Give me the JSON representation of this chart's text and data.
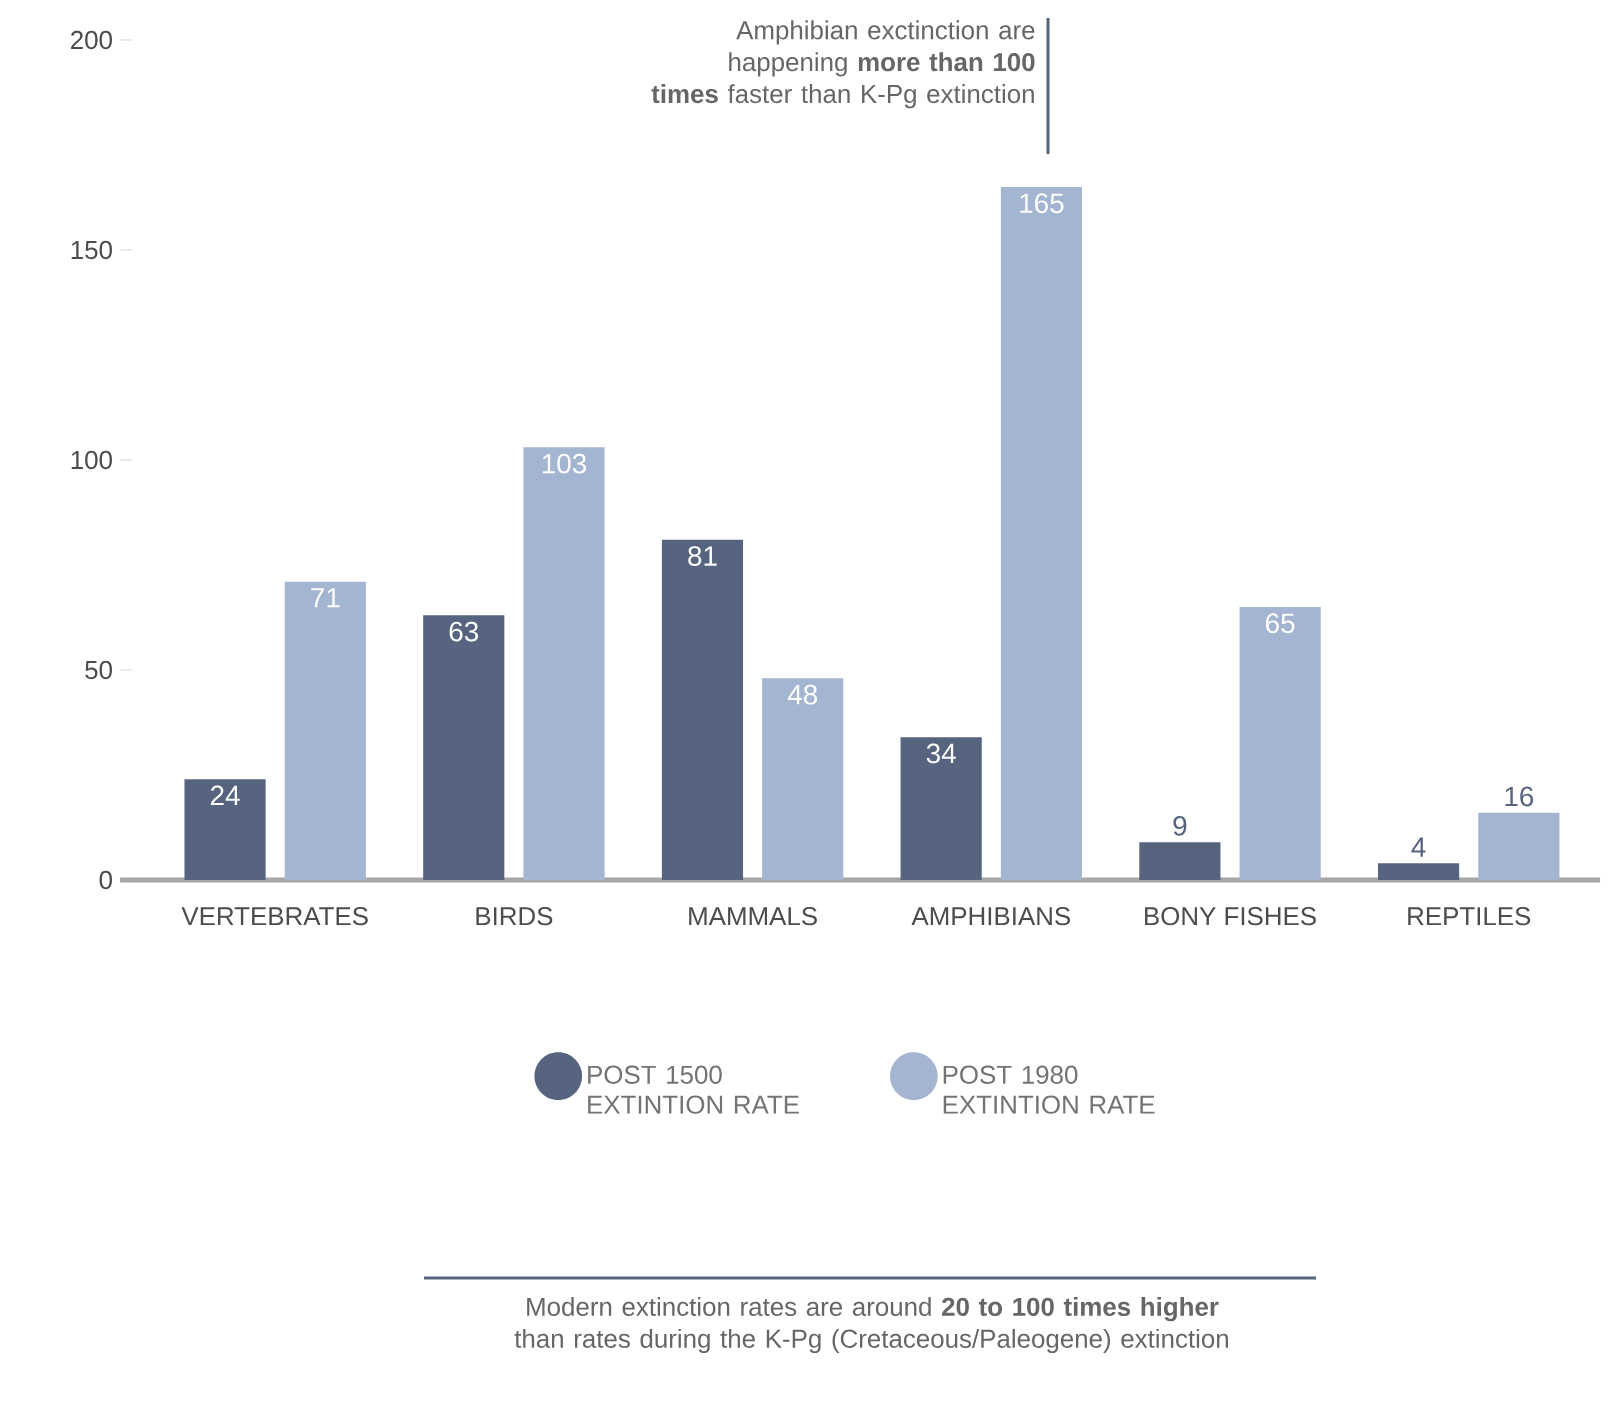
{
  "chart_data": {
    "type": "bar",
    "categories": [
      "VERTEBRATES",
      "BIRDS",
      "MAMMALS",
      "AMPHIBIANS",
      "BONY FISHES",
      "REPTILES"
    ],
    "series": [
      {
        "name": "POST 1500 EXTINTION RATE",
        "color": "#56647f",
        "values": [
          24,
          63,
          81,
          34,
          9,
          4
        ]
      },
      {
        "name": "POST 1980 EXTINTION RATE",
        "color": "#a3b5d0",
        "values": [
          71,
          103,
          48,
          165,
          65,
          16
        ]
      }
    ],
    "ylim": [
      0,
      200
    ],
    "yticks": [
      0,
      50,
      100,
      150,
      200
    ],
    "data_labels": true,
    "legend": "bottom",
    "annotations": [
      "Amphibian exctinction are happening **more than 100 times** faster than K-Pg extinction",
      "Modern extinction rates are around **20 to 100 times higher** than rates during the K-Pg (Cretaceous/Paleogene) extinction"
    ]
  }
}
